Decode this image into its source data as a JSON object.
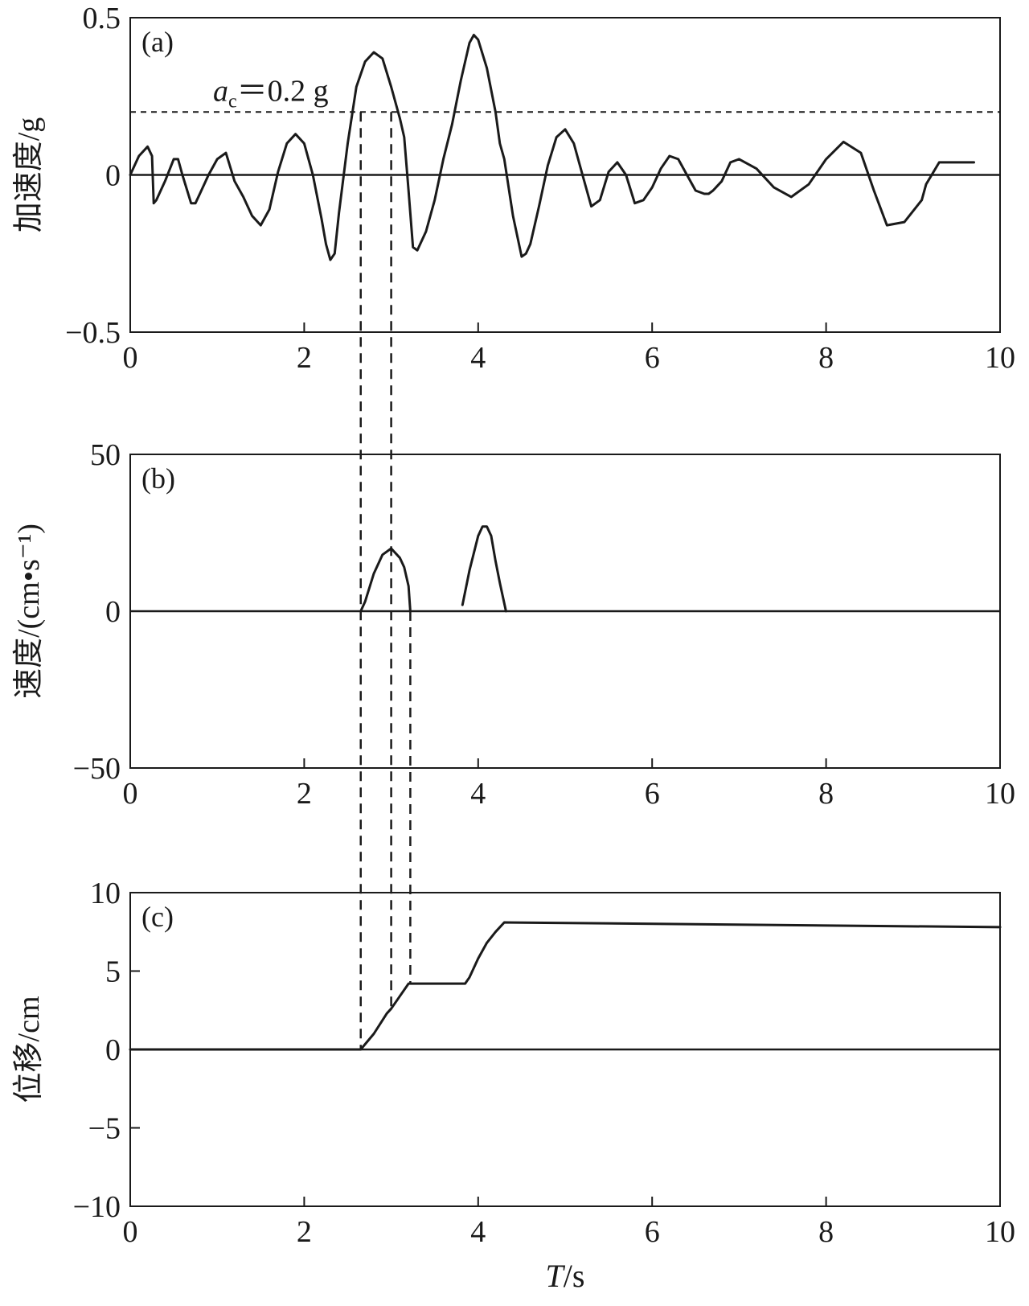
{
  "chart_data": [
    {
      "type": "line",
      "panel_label": "(a)",
      "ylabel": "加速度/g",
      "xlim": [
        0,
        10
      ],
      "ylim": [
        -0.5,
        0.5
      ],
      "xticks": [
        "0",
        "2",
        "4",
        "6",
        "8",
        "10"
      ],
      "yticks": [
        {
          "value": 0.5,
          "label": "0.5"
        },
        {
          "value": 0,
          "label": "0"
        },
        {
          "value": -0.5,
          "label": "−0.5"
        }
      ],
      "threshold": {
        "value": 0.2,
        "label_symbol": "a",
        "label_sub": "c",
        "label_rest": "＝0.2 g"
      },
      "series": [
        {
          "x": [
            0,
            0.1,
            0.2,
            0.25,
            0.27,
            0.3,
            0.4,
            0.5,
            0.55,
            0.6,
            0.7,
            0.75,
            0.8,
            0.9,
            1.0,
            1.1,
            1.2,
            1.3,
            1.4,
            1.5,
            1.6,
            1.7,
            1.8,
            1.9,
            2.0,
            2.1,
            2.2,
            2.25,
            2.3,
            2.35,
            2.4,
            2.5,
            2.6,
            2.7,
            2.8,
            2.9,
            3.0,
            3.1,
            3.15,
            3.2,
            3.25,
            3.3,
            3.4,
            3.5,
            3.6,
            3.7,
            3.8,
            3.9,
            3.95,
            4.0,
            4.1,
            4.2,
            4.25,
            4.3,
            4.4,
            4.5,
            4.55,
            4.6,
            4.7,
            4.8,
            4.9,
            5.0,
            5.1,
            5.2,
            5.3,
            5.4,
            5.5,
            5.6,
            5.7,
            5.8,
            5.9,
            6.0,
            6.1,
            6.2,
            6.3,
            6.4,
            6.5,
            6.6,
            6.65,
            6.7,
            6.8,
            6.9,
            7.0,
            7.2,
            7.4,
            7.6,
            7.8,
            8.0,
            8.2,
            8.4,
            8.55,
            8.7,
            8.9,
            9.1,
            9.15,
            9.3,
            9.5,
            9.7
          ],
          "y": [
            0,
            0.06,
            0.09,
            0.06,
            -0.09,
            -0.08,
            -0.02,
            0.05,
            0.05,
            0.0,
            -0.09,
            -0.09,
            -0.06,
            0.0,
            0.05,
            0.07,
            -0.02,
            -0.07,
            -0.13,
            -0.16,
            -0.11,
            0.01,
            0.1,
            0.13,
            0.1,
            0.0,
            -0.14,
            -0.22,
            -0.27,
            -0.25,
            -0.12,
            0.1,
            0.28,
            0.36,
            0.39,
            0.37,
            0.28,
            0.18,
            0.12,
            -0.05,
            -0.23,
            -0.24,
            -0.18,
            -0.08,
            0.05,
            0.16,
            0.3,
            0.42,
            0.445,
            0.43,
            0.34,
            0.2,
            0.1,
            0.05,
            -0.13,
            -0.26,
            -0.25,
            -0.22,
            -0.1,
            0.03,
            0.12,
            0.145,
            0.1,
            0.0,
            -0.1,
            -0.08,
            0.01,
            0.04,
            0.0,
            -0.09,
            -0.08,
            -0.04,
            0.02,
            0.06,
            0.05,
            0.0,
            -0.05,
            -0.06,
            -0.06,
            -0.05,
            -0.02,
            0.04,
            0.05,
            0.02,
            -0.04,
            -0.07,
            -0.03,
            0.05,
            0.105,
            0.07,
            -0.05,
            -0.16,
            -0.15,
            -0.08,
            -0.03,
            0.04,
            0.04,
            0.04
          ]
        }
      ]
    },
    {
      "type": "line",
      "panel_label": "(b)",
      "ylabel": "速度/(cm•s⁻¹)",
      "xlim": [
        0,
        10
      ],
      "ylim": [
        -50,
        50
      ],
      "xticks": [
        "0",
        "2",
        "4",
        "6",
        "8",
        "10"
      ],
      "yticks": [
        {
          "value": 50,
          "label": "50"
        },
        {
          "value": 0,
          "label": "0"
        },
        {
          "value": -50,
          "label": "−50"
        }
      ],
      "series": [
        {
          "x": [
            2.65,
            2.7,
            2.8,
            2.9,
            3.0,
            3.1,
            3.15,
            3.2,
            3.22
          ],
          "y": [
            0,
            3,
            12,
            18,
            20,
            17,
            14,
            8,
            0
          ]
        },
        {
          "x": [
            3.82,
            3.9,
            4.0,
            4.05,
            4.1,
            4.15,
            4.2,
            4.25,
            4.32
          ],
          "y": [
            2,
            13,
            24,
            27,
            27,
            24,
            16,
            9,
            0
          ]
        }
      ]
    },
    {
      "type": "line",
      "panel_label": "(c)",
      "ylabel": "位移/cm",
      "xlabel_symbol": "T",
      "xlabel_rest": "/s",
      "xlim": [
        0,
        10
      ],
      "ylim": [
        -10,
        10
      ],
      "xticks": [
        "0",
        "2",
        "4",
        "6",
        "8",
        "10"
      ],
      "yticks": [
        {
          "value": 10,
          "label": "10"
        },
        {
          "value": 5,
          "label": "5"
        },
        {
          "value": 0,
          "label": "0"
        },
        {
          "value": -5,
          "label": "−5"
        },
        {
          "value": -10,
          "label": "−10"
        }
      ],
      "series": [
        {
          "x": [
            0,
            2.65,
            2.8,
            2.95,
            3.0,
            3.1,
            3.2,
            3.5,
            3.85,
            3.9,
            4.0,
            4.1,
            4.2,
            4.3,
            10
          ],
          "y": [
            0,
            0,
            1.0,
            2.3,
            2.6,
            3.4,
            4.2,
            4.2,
            4.2,
            4.6,
            5.8,
            6.8,
            7.5,
            8.1,
            7.8
          ]
        }
      ]
    }
  ],
  "connectors": [
    2.65,
    3.0,
    3.22
  ]
}
